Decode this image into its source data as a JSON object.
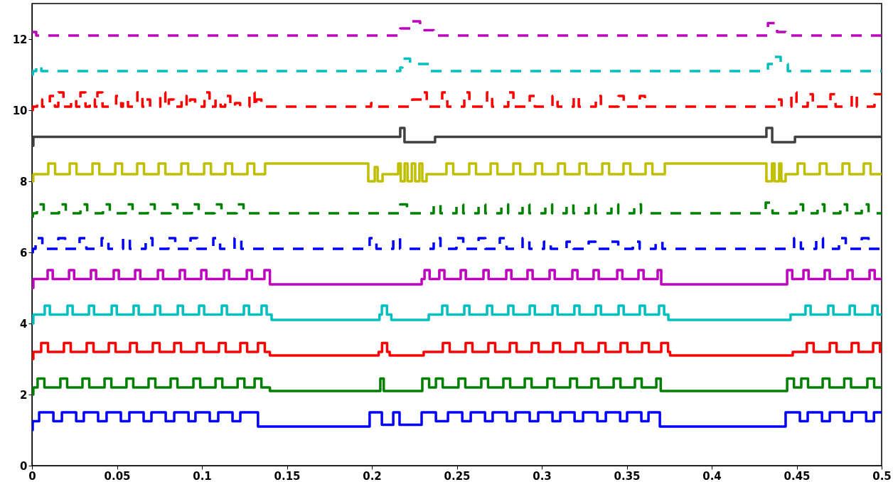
{
  "chart_data": {
    "type": "step",
    "xlim": [
      0,
      0.5
    ],
    "ylim": [
      0,
      13
    ],
    "xticks": [
      0,
      0.05,
      0.1,
      0.15,
      0.2,
      0.25,
      0.3,
      0.35,
      0.4,
      0.45,
      0.5
    ],
    "yticks": [
      0,
      2,
      4,
      6,
      8,
      10,
      12
    ],
    "line_style": "solid",
    "series": [
      {
        "color": "#0000ff",
        "x": [
          0,
          0.0004,
          0.0042,
          0.0126,
          0.0176,
          0.026,
          0.0305,
          0.0389,
          0.0439,
          0.0523,
          0.0573,
          0.0657,
          0.0703,
          0.0787,
          0.0837,
          0.0921,
          0.0962,
          0.1046,
          0.1096,
          0.118,
          0.1226,
          0.133,
          0.1987,
          0.2059,
          0.2126,
          0.2163,
          0.2293,
          0.2377,
          0.2448,
          0.2532,
          0.2582,
          0.2666,
          0.2711,
          0.2795,
          0.2845,
          0.2929,
          0.2979,
          0.3063,
          0.3109,
          0.3193,
          0.3243,
          0.3327,
          0.3377,
          0.3461,
          0.3502,
          0.3586,
          0.3628,
          0.3695,
          0.4435,
          0.4519,
          0.4565,
          0.4649,
          0.4695,
          0.4779,
          0.4825,
          0.4909,
          0.4955,
          0.5
        ],
        "values": [
          1.0,
          1.25,
          1.5,
          1.25,
          1.5,
          1.25,
          1.5,
          1.25,
          1.5,
          1.25,
          1.5,
          1.25,
          1.5,
          1.25,
          1.5,
          1.25,
          1.5,
          1.25,
          1.5,
          1.25,
          1.5,
          1.1,
          1.5,
          1.15,
          1.5,
          1.15,
          1.5,
          1.25,
          1.5,
          1.25,
          1.5,
          1.25,
          1.5,
          1.25,
          1.5,
          1.25,
          1.5,
          1.25,
          1.5,
          1.25,
          1.5,
          1.25,
          1.5,
          1.25,
          1.5,
          1.25,
          1.5,
          1.1,
          1.5,
          1.25,
          1.5,
          1.25,
          1.5,
          1.25,
          1.5,
          1.25,
          1.5,
          1.5
        ]
      },
      {
        "color": "#008000",
        "x": [
          0,
          0.0008,
          0.0033,
          0.0073,
          0.0167,
          0.0207,
          0.0297,
          0.0337,
          0.0427,
          0.0467,
          0.0556,
          0.0596,
          0.0686,
          0.0726,
          0.0816,
          0.0856,
          0.095,
          0.099,
          0.108,
          0.112,
          0.121,
          0.125,
          0.131,
          0.135,
          0.14,
          0.205,
          0.207,
          0.2297,
          0.2337,
          0.2377,
          0.2417,
          0.251,
          0.255,
          0.2644,
          0.2684,
          0.2774,
          0.2814,
          0.29,
          0.294,
          0.3033,
          0.3073,
          0.3167,
          0.3207,
          0.3293,
          0.3333,
          0.3423,
          0.3463,
          0.3548,
          0.3588,
          0.3674,
          0.37,
          0.4444,
          0.4484,
          0.4527,
          0.4567,
          0.4653,
          0.4693,
          0.478,
          0.482,
          0.4916,
          0.4956,
          0.5
        ],
        "values": [
          2.0,
          2.2,
          2.45,
          2.2,
          2.45,
          2.2,
          2.45,
          2.2,
          2.45,
          2.2,
          2.45,
          2.2,
          2.45,
          2.2,
          2.45,
          2.2,
          2.45,
          2.2,
          2.45,
          2.2,
          2.45,
          2.2,
          2.45,
          2.2,
          2.1,
          2.45,
          2.1,
          2.45,
          2.2,
          2.45,
          2.2,
          2.45,
          2.2,
          2.45,
          2.2,
          2.45,
          2.2,
          2.45,
          2.2,
          2.45,
          2.2,
          2.45,
          2.2,
          2.45,
          2.2,
          2.45,
          2.2,
          2.45,
          2.2,
          2.45,
          2.1,
          2.45,
          2.2,
          2.45,
          2.2,
          2.45,
          2.2,
          2.45,
          2.2,
          2.45,
          2.2,
          2.2
        ]
      },
      {
        "color": "#ff0000",
        "x": [
          0,
          0.0008,
          0.0054,
          0.0094,
          0.0188,
          0.0228,
          0.0322,
          0.0362,
          0.0452,
          0.0492,
          0.0577,
          0.0617,
          0.0711,
          0.0751,
          0.0837,
          0.0877,
          0.097,
          0.101,
          0.11,
          0.114,
          0.1226,
          0.1266,
          0.133,
          0.137,
          0.14,
          0.204,
          0.206,
          0.209,
          0.2105,
          0.2305,
          0.2418,
          0.2458,
          0.2552,
          0.2592,
          0.2686,
          0.2726,
          0.2812,
          0.2852,
          0.2941,
          0.2981,
          0.3067,
          0.3107,
          0.32,
          0.324,
          0.3335,
          0.3375,
          0.3464,
          0.3504,
          0.359,
          0.363,
          0.3703,
          0.3743,
          0.3755,
          0.4477,
          0.456,
          0.46,
          0.4695,
          0.4735,
          0.4824,
          0.4864,
          0.495,
          0.499,
          0.5
        ],
        "values": [
          3.0,
          3.2,
          3.45,
          3.2,
          3.45,
          3.2,
          3.45,
          3.2,
          3.45,
          3.2,
          3.45,
          3.2,
          3.45,
          3.2,
          3.45,
          3.2,
          3.45,
          3.2,
          3.45,
          3.2,
          3.45,
          3.2,
          3.45,
          3.2,
          3.1,
          3.2,
          3.45,
          3.2,
          3.1,
          3.2,
          3.45,
          3.2,
          3.45,
          3.2,
          3.45,
          3.2,
          3.45,
          3.2,
          3.45,
          3.2,
          3.45,
          3.2,
          3.45,
          3.2,
          3.45,
          3.2,
          3.45,
          3.2,
          3.45,
          3.2,
          3.45,
          3.2,
          3.1,
          3.2,
          3.45,
          3.2,
          3.45,
          3.2,
          3.45,
          3.2,
          3.45,
          3.2,
          3.2
        ]
      },
      {
        "color": "#00bfbf",
        "x": [
          0,
          0.0008,
          0.0075,
          0.0105,
          0.0209,
          0.0239,
          0.0335,
          0.0365,
          0.0469,
          0.0499,
          0.0598,
          0.0628,
          0.0724,
          0.0754,
          0.0858,
          0.0888,
          0.0983,
          0.1013,
          0.1117,
          0.1147,
          0.1247,
          0.1277,
          0.1351,
          0.1381,
          0.141,
          0.2045,
          0.2059,
          0.2089,
          0.2115,
          0.2335,
          0.2414,
          0.2444,
          0.2544,
          0.2574,
          0.2678,
          0.2708,
          0.2803,
          0.2833,
          0.2929,
          0.2959,
          0.3063,
          0.3093,
          0.3192,
          0.3222,
          0.3318,
          0.3348,
          0.3452,
          0.3482,
          0.3577,
          0.3607,
          0.369,
          0.372,
          0.3745,
          0.4464,
          0.4552,
          0.4582,
          0.4686,
          0.4716,
          0.4812,
          0.4842,
          0.4946,
          0.4976,
          0.5
        ],
        "values": [
          4.0,
          4.25,
          4.5,
          4.25,
          4.5,
          4.25,
          4.5,
          4.25,
          4.5,
          4.25,
          4.5,
          4.25,
          4.5,
          4.25,
          4.5,
          4.25,
          4.5,
          4.25,
          4.5,
          4.25,
          4.5,
          4.25,
          4.5,
          4.25,
          4.1,
          4.25,
          4.5,
          4.25,
          4.1,
          4.25,
          4.5,
          4.25,
          4.5,
          4.25,
          4.5,
          4.25,
          4.5,
          4.25,
          4.5,
          4.25,
          4.5,
          4.25,
          4.5,
          4.25,
          4.5,
          4.25,
          4.5,
          4.25,
          4.5,
          4.25,
          4.5,
          4.25,
          4.1,
          4.25,
          4.5,
          4.25,
          4.5,
          4.25,
          4.5,
          4.25,
          4.5,
          4.25,
          4.25
        ]
      },
      {
        "color": "#bf00bf",
        "x": [
          0,
          0.0008,
          0.0092,
          0.0122,
          0.0218,
          0.0248,
          0.0347,
          0.0377,
          0.0481,
          0.0511,
          0.0607,
          0.0637,
          0.0741,
          0.0771,
          0.087,
          0.09,
          0.0996,
          0.1026,
          0.113,
          0.116,
          0.1264,
          0.1294,
          0.1368,
          0.14,
          0.2293,
          0.231,
          0.234,
          0.2397,
          0.2427,
          0.2523,
          0.2553,
          0.2657,
          0.2687,
          0.2791,
          0.2821,
          0.2916,
          0.2946,
          0.3046,
          0.3076,
          0.318,
          0.321,
          0.3305,
          0.3335,
          0.3444,
          0.3474,
          0.3569,
          0.3599,
          0.3682,
          0.3703,
          0.4444,
          0.4474,
          0.454,
          0.457,
          0.4665,
          0.4695,
          0.4799,
          0.4829,
          0.4929,
          0.4959,
          0.5
        ],
        "values": [
          5.0,
          5.25,
          5.5,
          5.25,
          5.5,
          5.25,
          5.5,
          5.25,
          5.5,
          5.25,
          5.5,
          5.25,
          5.5,
          5.25,
          5.5,
          5.25,
          5.5,
          5.25,
          5.5,
          5.25,
          5.5,
          5.25,
          5.5,
          5.1,
          5.25,
          5.5,
          5.25,
          5.5,
          5.25,
          5.5,
          5.25,
          5.5,
          5.25,
          5.5,
          5.25,
          5.5,
          5.25,
          5.5,
          5.25,
          5.5,
          5.25,
          5.5,
          5.25,
          5.5,
          5.25,
          5.5,
          5.25,
          5.5,
          5.1,
          5.5,
          5.25,
          5.5,
          5.25,
          5.5,
          5.25,
          5.5,
          5.25,
          5.5,
          5.25,
          5.25
        ]
      },
      {
        "color": "#0000ff",
        "line_style": "dashed",
        "x": [
          0,
          0.0005,
          0.0021,
          0.0061,
          0.0155,
          0.0195,
          0.028,
          0.032,
          0.041,
          0.045,
          0.0536,
          0.0576,
          0.0669,
          0.0709,
          0.0803,
          0.0843,
          0.0933,
          0.0973,
          0.1067,
          0.1107,
          0.1192,
          0.1232,
          0.1987,
          0.2027,
          0.2126,
          0.2166,
          0.2364,
          0.2404,
          0.2498,
          0.2538,
          0.2628,
          0.2668,
          0.2753,
          0.2793,
          0.2887,
          0.2927,
          0.3013,
          0.3053,
          0.3146,
          0.3186,
          0.3276,
          0.3316,
          0.341,
          0.345,
          0.3536,
          0.3576,
          0.367,
          0.371,
          0.4485,
          0.4525,
          0.4615,
          0.4655,
          0.4749,
          0.4789,
          0.4883,
          0.4923,
          0.5
        ],
        "values": [
          6.0,
          6.1,
          6.4,
          6.1,
          6.4,
          6.1,
          6.4,
          6.1,
          6.4,
          6.1,
          6.4,
          6.1,
          6.4,
          6.1,
          6.4,
          6.1,
          6.4,
          6.1,
          6.4,
          6.1,
          6.4,
          6.1,
          6.4,
          6.1,
          6.4,
          6.1,
          6.4,
          6.1,
          6.4,
          6.1,
          6.4,
          6.1,
          6.4,
          6.1,
          6.4,
          6.1,
          6.3,
          6.1,
          6.3,
          6.1,
          6.3,
          6.1,
          6.3,
          6.1,
          6.3,
          6.1,
          6.3,
          6.1,
          6.4,
          6.1,
          6.4,
          6.1,
          6.4,
          6.1,
          6.4,
          6.1,
          6.1
        ]
      },
      {
        "color": "#008000",
        "line_style": "dashed",
        "x": [
          0,
          0.0005,
          0.0029,
          0.0069,
          0.0159,
          0.0199,
          0.0285,
          0.0325,
          0.0418,
          0.0458,
          0.0552,
          0.0592,
          0.0682,
          0.0722,
          0.0816,
          0.0856,
          0.0941,
          0.0981,
          0.1075,
          0.1115,
          0.1205,
          0.1245,
          0.2167,
          0.2207,
          0.2364,
          0.2404,
          0.2498,
          0.2538,
          0.2628,
          0.2668,
          0.2762,
          0.2802,
          0.2887,
          0.2927,
          0.3021,
          0.3061,
          0.3146,
          0.3186,
          0.3276,
          0.3316,
          0.341,
          0.345,
          0.3544,
          0.3584,
          0.4318,
          0.4358,
          0.4498,
          0.4538,
          0.4623,
          0.4663,
          0.4757,
          0.4797,
          0.4883,
          0.4923,
          0.5
        ],
        "values": [
          7.0,
          7.1,
          7.35,
          7.1,
          7.35,
          7.1,
          7.35,
          7.1,
          7.35,
          7.1,
          7.35,
          7.1,
          7.35,
          7.1,
          7.35,
          7.1,
          7.35,
          7.1,
          7.35,
          7.1,
          7.35,
          7.1,
          7.35,
          7.1,
          7.35,
          7.1,
          7.35,
          7.1,
          7.35,
          7.1,
          7.35,
          7.1,
          7.35,
          7.1,
          7.35,
          7.1,
          7.35,
          7.1,
          7.35,
          7.1,
          7.35,
          7.1,
          7.35,
          7.1,
          7.4,
          7.1,
          7.35,
          7.1,
          7.35,
          7.1,
          7.35,
          7.1,
          7.35,
          7.1,
          7.1
        ]
      },
      {
        "color": "#bfbf00",
        "x": [
          0,
          0.0008,
          0.0096,
          0.0136,
          0.0222,
          0.0262,
          0.0356,
          0.0396,
          0.049,
          0.053,
          0.0619,
          0.0659,
          0.0745,
          0.0785,
          0.0879,
          0.0919,
          0.1013,
          0.1053,
          0.1138,
          0.1178,
          0.1268,
          0.1308,
          0.1372,
          0.1979,
          0.2017,
          0.2034,
          0.2063,
          0.2155,
          0.217,
          0.2193,
          0.221,
          0.2235,
          0.2255,
          0.228,
          0.2297,
          0.2322,
          0.2439,
          0.2479,
          0.2573,
          0.2613,
          0.2699,
          0.2739,
          0.2833,
          0.2873,
          0.2962,
          0.3002,
          0.3096,
          0.3136,
          0.3222,
          0.3262,
          0.3356,
          0.3396,
          0.3481,
          0.3521,
          0.3611,
          0.3651,
          0.3724,
          0.4322,
          0.4355,
          0.437,
          0.4397,
          0.441,
          0.4435,
          0.4506,
          0.4546,
          0.4636,
          0.4676,
          0.477,
          0.481,
          0.4895,
          0.4935,
          0.5
        ],
        "values": [
          8.0,
          8.2,
          8.5,
          8.2,
          8.5,
          8.2,
          8.5,
          8.2,
          8.5,
          8.2,
          8.5,
          8.2,
          8.5,
          8.2,
          8.5,
          8.2,
          8.5,
          8.2,
          8.5,
          8.2,
          8.5,
          8.2,
          8.5,
          8.0,
          8.4,
          8.0,
          8.2,
          8.5,
          8.0,
          8.5,
          8.0,
          8.5,
          8.0,
          8.5,
          8.0,
          8.2,
          8.5,
          8.2,
          8.5,
          8.2,
          8.5,
          8.2,
          8.5,
          8.2,
          8.5,
          8.2,
          8.5,
          8.2,
          8.5,
          8.2,
          8.5,
          8.2,
          8.5,
          8.2,
          8.5,
          8.2,
          8.5,
          8.0,
          8.5,
          8.0,
          8.5,
          8.0,
          8.2,
          8.5,
          8.2,
          8.5,
          8.2,
          8.5,
          8.2,
          8.5,
          8.2,
          8.2
        ]
      },
      {
        "color": "#404040",
        "x": [
          0,
          0.0008,
          0.2167,
          0.2192,
          0.2372,
          0.4322,
          0.4356,
          0.449,
          0.5
        ],
        "values": [
          9.0,
          9.25,
          9.5,
          9.1,
          9.25,
          9.5,
          9.1,
          9.25,
          9.25
        ]
      },
      {
        "color": "#ff0000",
        "line_style": "dashed",
        "x": [
          0,
          0.0005,
          0.003,
          0.006,
          0.0105,
          0.0135,
          0.0155,
          0.0185,
          0.023,
          0.026,
          0.0285,
          0.0315,
          0.034,
          0.037,
          0.0385,
          0.0415,
          0.0495,
          0.0525,
          0.0535,
          0.0565,
          0.062,
          0.065,
          0.0665,
          0.0695,
          0.0755,
          0.0785,
          0.0805,
          0.0835,
          0.088,
          0.091,
          0.093,
          0.096,
          0.1015,
          0.1045,
          0.108,
          0.111,
          0.1137,
          0.1167,
          0.1195,
          0.1225,
          0.128,
          0.131,
          0.132,
          0.135,
          0.1996,
          0.2026,
          0.2238,
          0.2293,
          0.2323,
          0.2414,
          0.2444,
          0.2544,
          0.2574,
          0.2678,
          0.2708,
          0.2803,
          0.2833,
          0.2929,
          0.2959,
          0.3063,
          0.3093,
          0.3188,
          0.3218,
          0.3318,
          0.3348,
          0.3452,
          0.3482,
          0.3577,
          0.3607,
          0.4381,
          0.4411,
          0.4469,
          0.4499,
          0.4565,
          0.4595,
          0.4699,
          0.4729,
          0.4824,
          0.4854,
          0.4958,
          0.5
        ],
        "values": [
          10.0,
          10.1,
          10.3,
          10.1,
          10.4,
          10.1,
          10.5,
          10.1,
          10.3,
          10.1,
          10.5,
          10.1,
          10.3,
          10.1,
          10.5,
          10.1,
          10.4,
          10.1,
          10.3,
          10.1,
          10.5,
          10.1,
          10.3,
          10.1,
          10.5,
          10.1,
          10.3,
          10.1,
          10.4,
          10.1,
          10.3,
          10.1,
          10.5,
          10.1,
          10.3,
          10.1,
          10.4,
          10.1,
          10.2,
          10.1,
          10.5,
          10.1,
          10.3,
          10.1,
          10.2,
          10.1,
          10.3,
          10.5,
          10.1,
          10.5,
          10.1,
          10.5,
          10.1,
          10.5,
          10.1,
          10.5,
          10.1,
          10.4,
          10.1,
          10.4,
          10.1,
          10.4,
          10.1,
          10.4,
          10.1,
          10.4,
          10.1,
          10.4,
          10.1,
          10.3,
          10.1,
          10.5,
          10.1,
          10.45,
          10.1,
          10.45,
          10.1,
          10.45,
          10.1,
          10.45,
          10.45
        ]
      },
      {
        "color": "#00bfbf",
        "line_style": "dashed",
        "x": [
          0,
          0.0005,
          0.0025,
          0.004,
          0.0055,
          0.2167,
          0.218,
          0.2225,
          0.2335,
          0.4331,
          0.437,
          0.4406,
          0.4448,
          0.5
        ],
        "values": [
          11.0,
          11.1,
          11.2,
          11.25,
          11.1,
          11.2,
          11.45,
          11.3,
          11.1,
          11.3,
          11.5,
          11.3,
          11.1,
          11.1
        ]
      },
      {
        "color": "#bf00bf",
        "line_style": "dashed",
        "x": [
          0,
          0.0025,
          0.2167,
          0.2234,
          0.2284,
          0.2364,
          0.4331,
          0.4385,
          0.4435,
          0.5
        ],
        "values": [
          12.2,
          12.1,
          12.3,
          12.5,
          12.25,
          12.1,
          12.45,
          12.2,
          12.1,
          12.1
        ]
      }
    ]
  }
}
